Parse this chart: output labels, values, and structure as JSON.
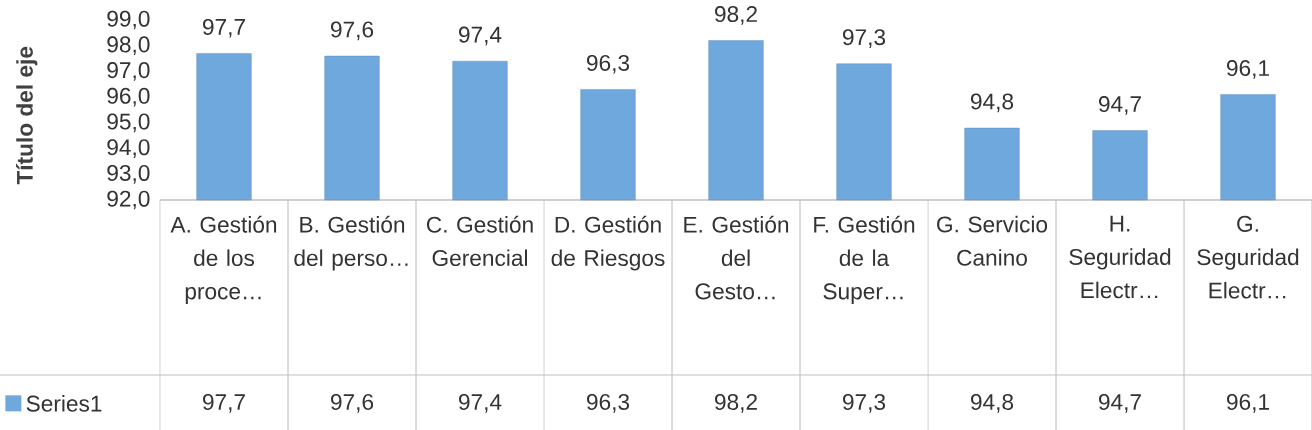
{
  "chart_data": {
    "type": "bar",
    "ylabel": "Título del eje",
    "categories": [
      "A. Gestión de los proce…",
      "B. Gestión del perso…",
      "C. Gestión Gerencial",
      "D. Gestión de Riesgos",
      "E. Gestión del Gesto…",
      "F. Gestión de la Super…",
      "G. Servicio Canino",
      "H. Seguridad Electr…",
      "G. Seguridad Electr…"
    ],
    "series": [
      {
        "name": "Series1",
        "color": "#6fa8dc",
        "values": [
          97.7,
          97.6,
          97.4,
          96.3,
          98.2,
          97.3,
          94.8,
          94.7,
          96.1
        ],
        "value_labels": [
          "97,7",
          "97,6",
          "97,4",
          "96,3",
          "98,2",
          "97,3",
          "94,8",
          "94,7",
          "96,1"
        ]
      }
    ],
    "ylim": [
      92,
      99
    ],
    "yticks": [
      {
        "value": 92,
        "label": "92,0"
      },
      {
        "value": 93,
        "label": "93,0"
      },
      {
        "value": 94,
        "label": "94,0"
      },
      {
        "value": 95,
        "label": "95,0"
      },
      {
        "value": 96,
        "label": "96,0"
      },
      {
        "value": 97,
        "label": "97,0"
      },
      {
        "value": 98,
        "label": "98,0"
      },
      {
        "value": 99,
        "label": "99,0"
      }
    ],
    "legend": "bottom left"
  }
}
